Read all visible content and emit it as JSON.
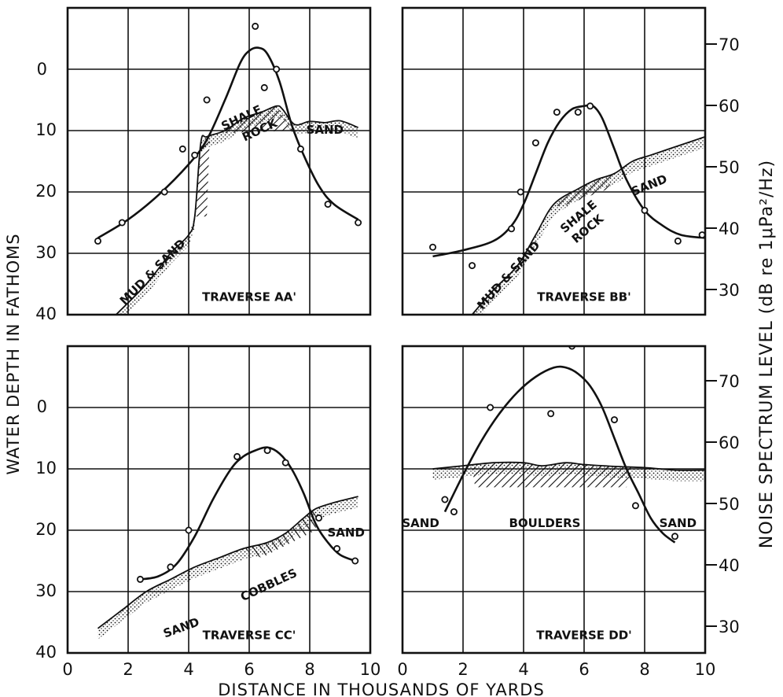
{
  "axes": {
    "x_label": "DISTANCE IN THOUSANDS OF YARDS",
    "y_left_label": "WATER DEPTH IN FATHOMS",
    "y_right_label": "NOISE SPECTRUM LEVEL (dB re 1μPa²/Hz)",
    "x_ticks": [
      "0",
      "2",
      "4",
      "6",
      "8",
      "10"
    ],
    "depth_ticks": [
      "0",
      "10",
      "20",
      "30",
      "40"
    ],
    "noise_ticks": [
      "70",
      "60",
      "50",
      "40",
      "30"
    ]
  },
  "chart_data": [
    {
      "type": "line",
      "panel": "top-left",
      "title": "TRAVERSE AA'",
      "xlim": [
        0,
        10
      ],
      "depth_lim": [
        -10,
        40
      ],
      "noise_lim": [
        25,
        75
      ],
      "annotations": [
        "SHALE ROCK",
        "SAND",
        "MUD & SAND"
      ],
      "noise_points": {
        "x": [
          1.0,
          1.8,
          3.2,
          3.8,
          4.2,
          4.6,
          6.2,
          6.5,
          6.9,
          7.7,
          8.6,
          9.6
        ],
        "y": [
          37,
          40,
          45,
          52,
          51,
          60,
          72,
          62,
          65,
          52,
          43,
          40
        ]
      },
      "noise_curve": {
        "x": [
          1.0,
          2.0,
          3.0,
          4.0,
          4.6,
          5.2,
          5.7,
          6.0,
          6.3,
          6.6,
          7.0,
          7.4,
          7.8,
          8.3,
          8.8,
          9.6
        ],
        "y": [
          37.5,
          40.5,
          44.5,
          49.5,
          53.5,
          60,
          66,
          68,
          68.5,
          67.5,
          63,
          56,
          51,
          46,
          43,
          40.5
        ]
      },
      "bottom_depth": {
        "x": [
          1.6,
          2.6,
          3.4,
          4.0,
          4.2,
          4.4,
          4.6,
          5.2,
          5.8,
          6.4,
          6.9,
          7.1,
          7.5,
          8.0,
          8.5,
          9.0,
          9.6
        ],
        "y": [
          40,
          35,
          30,
          27,
          24,
          12,
          11,
          10,
          8,
          7,
          6,
          6.5,
          9,
          8.5,
          8.7,
          8.4,
          9.5
        ]
      }
    },
    {
      "type": "line",
      "panel": "top-right",
      "title": "TRAVERSE BB'",
      "xlim": [
        0,
        10
      ],
      "depth_lim": [
        -10,
        40
      ],
      "noise_lim": [
        25,
        75
      ],
      "annotations": [
        "SHALE ROCK",
        "SAND",
        "MUD & SAND"
      ],
      "noise_points": {
        "x": [
          1.0,
          2.3,
          3.6,
          3.9,
          4.4,
          5.1,
          5.8,
          6.2,
          8.0,
          9.1,
          9.9
        ],
        "y": [
          36,
          33,
          39,
          45,
          53,
          58,
          58,
          59,
          42,
          37,
          38
        ]
      },
      "noise_curve": {
        "x": [
          1.0,
          2.0,
          3.0,
          3.6,
          4.0,
          4.4,
          4.8,
          5.2,
          5.6,
          6.0,
          6.3,
          6.6,
          7.0,
          7.4,
          8.0,
          8.6,
          9.2,
          10.0
        ],
        "y": [
          34.5,
          35.5,
          37,
          39.5,
          43,
          48,
          53,
          56.5,
          58.5,
          59,
          59,
          57,
          52,
          47,
          42,
          39.5,
          38,
          37.5
        ]
      },
      "bottom_depth": {
        "x": [
          2.3,
          3.0,
          3.8,
          4.4,
          5.0,
          5.8,
          6.4,
          7.0,
          7.6,
          8.2,
          8.8,
          9.4,
          10.0
        ],
        "y": [
          40,
          36,
          32,
          27,
          22,
          19.5,
          18,
          17,
          15,
          14,
          13,
          12,
          11
        ]
      }
    },
    {
      "type": "line",
      "panel": "bottom-left",
      "title": "TRAVERSE CC'",
      "xlim": [
        0,
        10
      ],
      "depth_lim": [
        -10,
        40
      ],
      "noise_lim": [
        25,
        75
      ],
      "annotations": [
        "SAND",
        "COBBLES",
        "SAND"
      ],
      "noise_points": {
        "x": [
          2.4,
          3.4,
          4.0,
          5.6,
          6.6,
          7.2,
          8.3,
          8.9,
          9.5
        ],
        "y": [
          37,
          39,
          45,
          57,
          58,
          56,
          47,
          42,
          40
        ]
      },
      "noise_curve": {
        "x": [
          2.4,
          3.0,
          3.6,
          4.2,
          4.8,
          5.4,
          5.8,
          6.2,
          6.6,
          7.0,
          7.4,
          7.8,
          8.2,
          8.6,
          9.0,
          9.5
        ],
        "y": [
          37,
          37.5,
          39.5,
          44,
          50,
          55,
          57,
          58,
          58.5,
          57.5,
          55,
          51,
          46,
          43,
          41,
          40
        ]
      },
      "bottom_depth": {
        "x": [
          1.0,
          1.8,
          2.6,
          3.4,
          4.2,
          5.0,
          5.8,
          6.6,
          7.2,
          7.8,
          8.2,
          8.8,
          9.6
        ],
        "y": [
          36,
          33,
          30,
          28,
          26,
          24.5,
          23,
          22,
          20.5,
          18,
          16.5,
          15.5,
          14.5
        ]
      }
    },
    {
      "type": "line",
      "panel": "bottom-right",
      "title": "TRAVERSE DD'",
      "xlim": [
        0,
        10
      ],
      "depth_lim": [
        -10,
        40
      ],
      "noise_lim": [
        25,
        75
      ],
      "annotations": [
        "SAND",
        "BOULDERS",
        "SAND"
      ],
      "noise_points": {
        "x": [
          1.4,
          1.7,
          2.9,
          4.9,
          5.6,
          7.0,
          7.7,
          9.0
        ],
        "y": [
          50,
          48,
          65,
          64,
          75,
          63,
          49,
          44
        ]
      },
      "noise_curve": {
        "x": [
          1.4,
          2.0,
          2.6,
          3.2,
          3.8,
          4.4,
          5.0,
          5.4,
          5.8,
          6.2,
          6.6,
          7.0,
          7.4,
          7.8,
          8.2,
          8.6,
          9.0
        ],
        "y": [
          48,
          54,
          59.5,
          64,
          67.5,
          70,
          71.5,
          71.5,
          70.5,
          68.5,
          65,
          60,
          55,
          51,
          47,
          44.5,
          43
        ]
      },
      "bottom_depth": {
        "x": [
          1.0,
          2.0,
          3.0,
          4.0,
          4.6,
          5.4,
          6.0,
          7.0,
          8.0,
          9.0,
          10.0
        ],
        "y": [
          10,
          9.5,
          9,
          9,
          9.5,
          9,
          9.3,
          9.6,
          9.8,
          10.2,
          10.2
        ]
      }
    }
  ]
}
